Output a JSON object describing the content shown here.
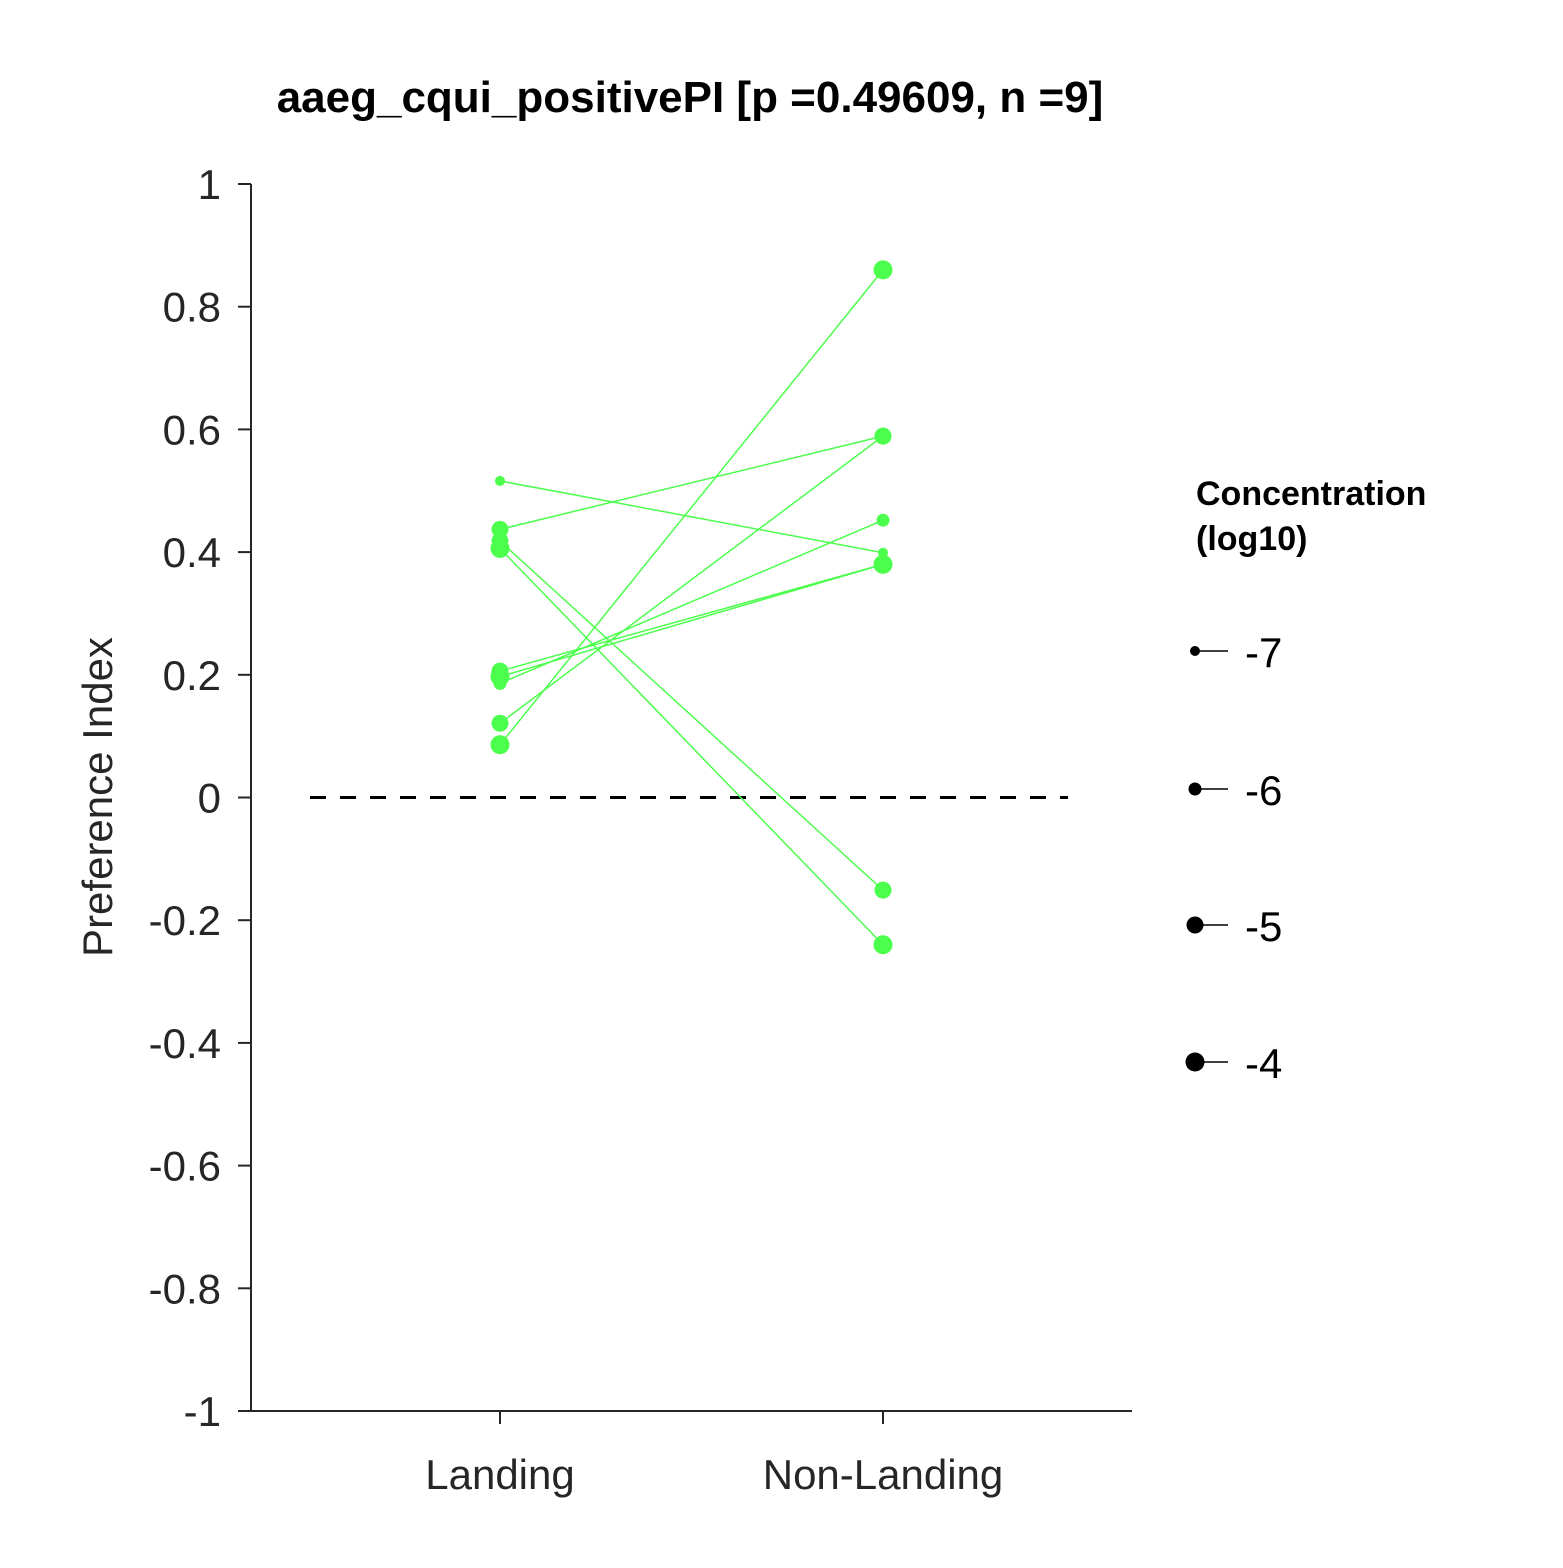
{
  "chart_data": {
    "type": "line",
    "title": "aaeg_cqui_positivePI [p =0.49609, n =9]",
    "xlabel": "",
    "ylabel": "Preference Index",
    "categories": [
      "Landing",
      "Non-Landing"
    ],
    "ylim": [
      -1,
      1
    ],
    "yticks": [
      1,
      0.8,
      0.6,
      0.4,
      0.2,
      0,
      -0.2,
      -0.4,
      -0.6,
      -0.8,
      -1
    ],
    "ytick_labels": [
      "1",
      "0.8",
      "0.6",
      "0.4",
      "0.2",
      "0",
      "-0.2",
      "-0.4",
      "-0.6",
      "-0.8",
      "-1"
    ],
    "reference_line": {
      "y": 0,
      "style": "dashed",
      "color": "#000000"
    },
    "series_color": "#4dff4d",
    "pairs": [
      {
        "landing": 0.516,
        "non_landing": 0.399,
        "concentration": -7
      },
      {
        "landing": 0.437,
        "non_landing": 0.589,
        "concentration": -5
      },
      {
        "landing": 0.418,
        "non_landing": -0.151,
        "concentration": -5
      },
      {
        "landing": 0.406,
        "non_landing": -0.24,
        "concentration": -4
      },
      {
        "landing": 0.206,
        "non_landing": 0.38,
        "concentration": -5
      },
      {
        "landing": 0.197,
        "non_landing": 0.38,
        "concentration": -4
      },
      {
        "landing": 0.186,
        "non_landing": 0.452,
        "concentration": -6
      },
      {
        "landing": 0.121,
        "non_landing": 0.589,
        "concentration": -5
      },
      {
        "landing": 0.086,
        "non_landing": 0.86,
        "concentration": -4
      }
    ],
    "legend": {
      "title_lines": [
        "Concentration",
        "(log10)"
      ],
      "position": "right",
      "entries": [
        {
          "label": "-7",
          "concentration": -7
        },
        {
          "label": "-6",
          "concentration": -6
        },
        {
          "label": "-5",
          "concentration": -5
        },
        {
          "label": "-4",
          "concentration": -4
        }
      ]
    },
    "grid": false
  }
}
